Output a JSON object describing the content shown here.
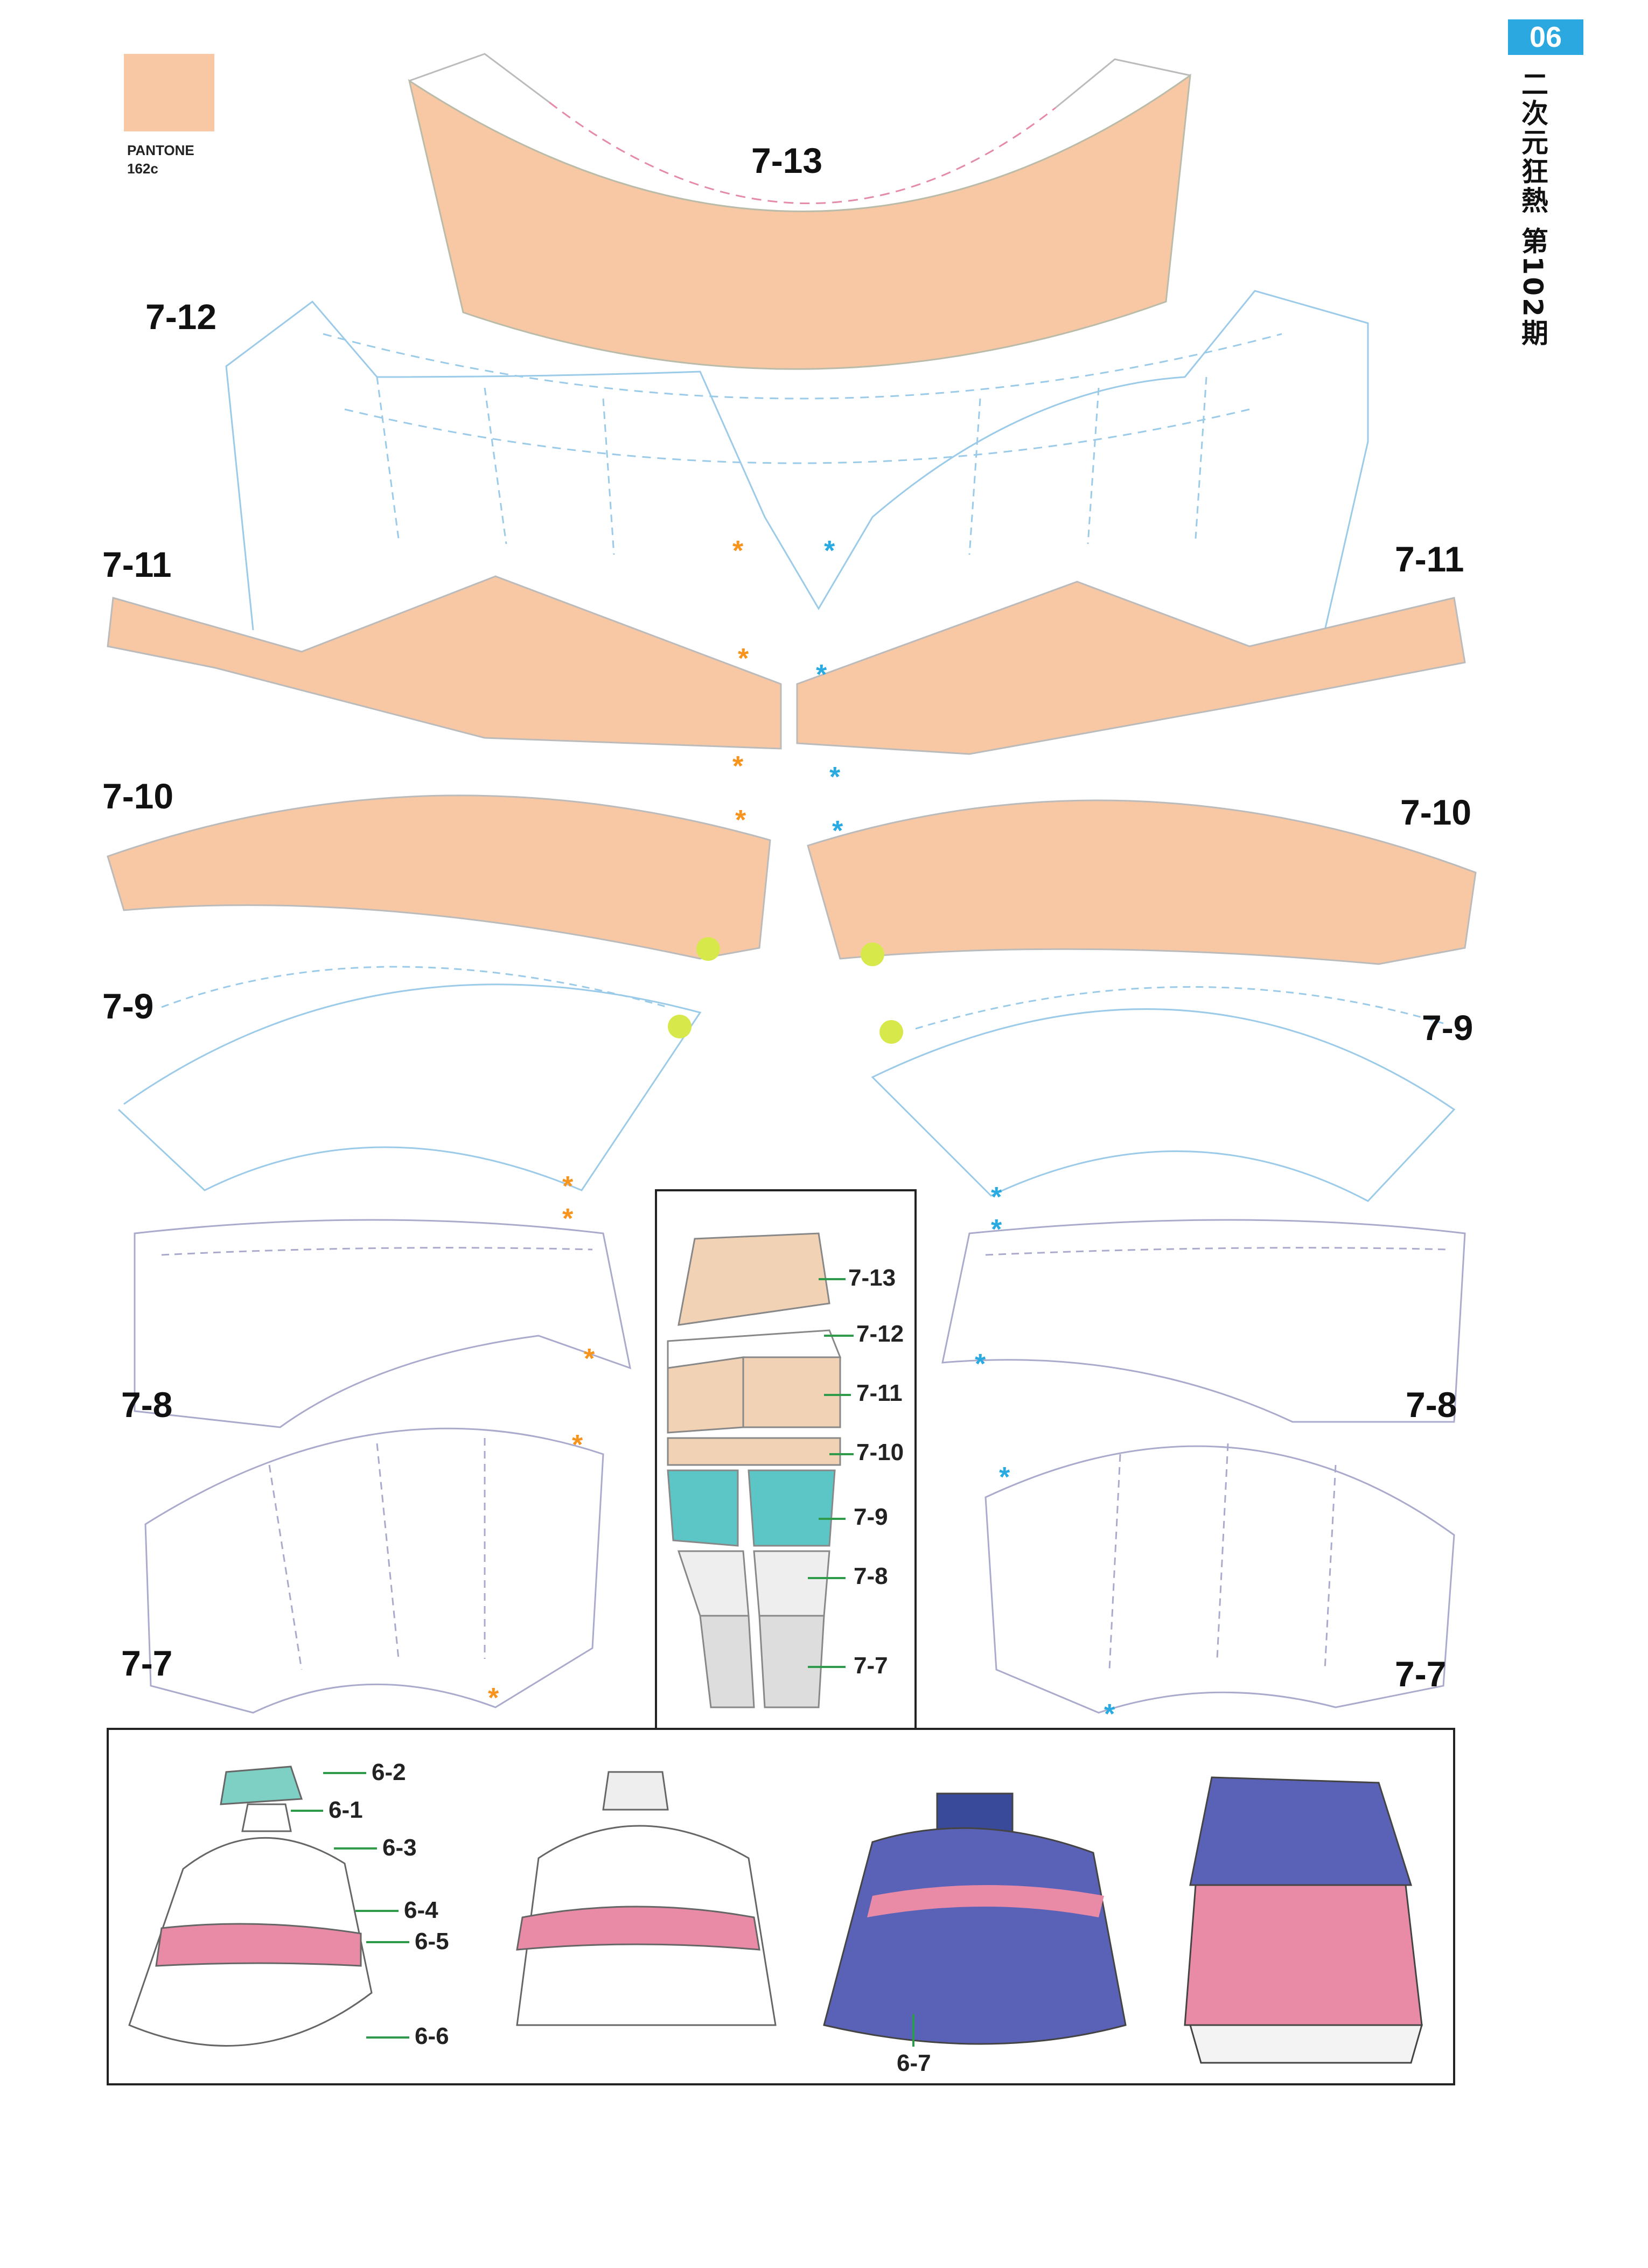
{
  "page": {
    "number": "06",
    "magazine_title": "二次元狂熱 第102期"
  },
  "swatch": {
    "brand": "PANTONE",
    "code": "162c",
    "color": "#f8c8a4"
  },
  "colors": {
    "skin": "#f8c8a4",
    "orange_mark": "#f7941d",
    "blue_mark": "#29abe2",
    "teal": "#5cc6c6",
    "pink": "#e98aa6",
    "purple": "#5a62b8",
    "line": "#9bcbe8"
  },
  "parts": {
    "p713": "7-13",
    "p712": "7-12",
    "p711": "7-11",
    "p710": "7-10",
    "p79": "7-9",
    "p78": "7-8",
    "p77": "7-7"
  },
  "leg_diagram": {
    "callouts": [
      "7-13",
      "7-12",
      "7-11",
      "7-10",
      "7-9",
      "7-8",
      "7-7"
    ]
  },
  "dress_diagram": {
    "callouts": [
      "6-2",
      "6-1",
      "6-3",
      "6-4",
      "6-5",
      "6-6",
      "6-7"
    ]
  }
}
